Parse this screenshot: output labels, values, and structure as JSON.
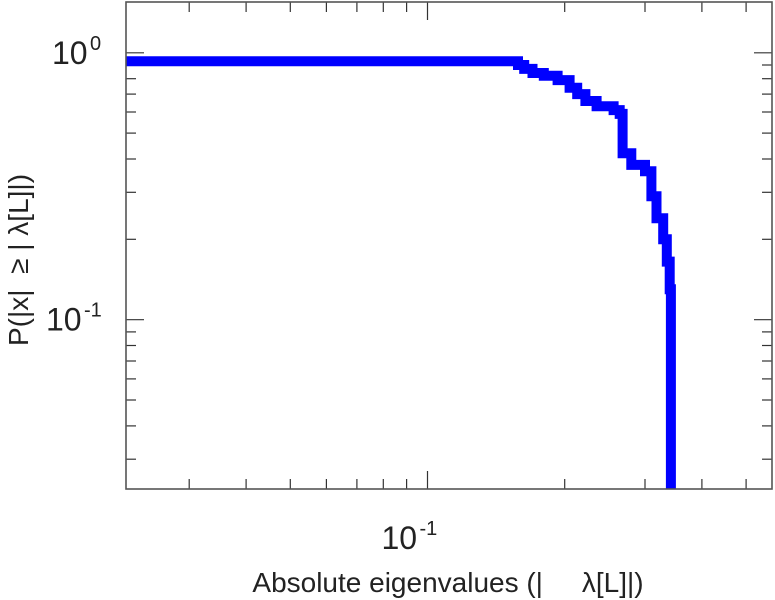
{
  "chart_data": {
    "type": "line",
    "title": "",
    "xlabel": "Absolute eigenvalues (|     λ[L]|)",
    "ylabel": "P(|x|  ≥ | λ[L]|)",
    "xscale": "log",
    "yscale": "log",
    "xlim": [
      0.0218,
      0.57
    ],
    "ylim": [
      0.0232,
      1.55
    ],
    "grid": false,
    "legend": "none",
    "line_color": "#0000ff",
    "x_ticks": [
      {
        "base": "10",
        "exp": "-1",
        "value": 0.1
      }
    ],
    "y_ticks": [
      {
        "base": "10",
        "exp": "0",
        "value": 1
      },
      {
        "base": "10",
        "exp": "-1",
        "value": 0.1
      }
    ],
    "series": [
      {
        "x": [
          0.0218,
          0.153,
          0.158,
          0.163,
          0.17,
          0.18,
          0.193,
          0.205,
          0.213,
          0.222,
          0.235,
          0.256,
          0.264,
          0.268,
          0.28,
          0.3,
          0.31,
          0.318,
          0.329,
          0.335,
          0.34,
          0.342
        ],
        "y": [
          0.93,
          0.93,
          0.9,
          0.87,
          0.84,
          0.82,
          0.79,
          0.74,
          0.7,
          0.66,
          0.63,
          0.61,
          0.59,
          0.42,
          0.38,
          0.36,
          0.29,
          0.24,
          0.2,
          0.165,
          0.13,
          0.0232
        ]
      }
    ]
  }
}
